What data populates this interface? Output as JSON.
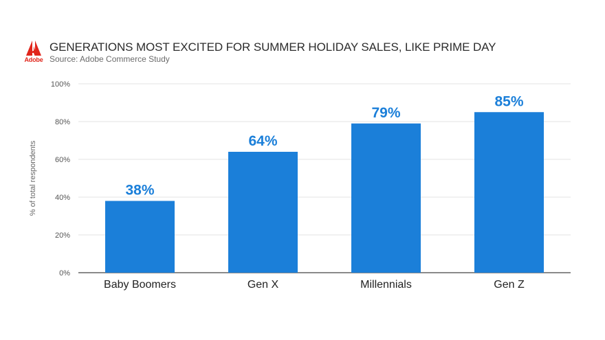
{
  "brand": {
    "name": "Adobe",
    "color": "#e1251b",
    "icon": "adobe-logo-icon"
  },
  "header": {
    "title": "GENERATIONS MOST EXCITED FOR SUMMER HOLIDAY SALES, LIKE PRIME DAY",
    "subtitle": "Source: Adobe Commerce Study"
  },
  "chart_data": {
    "type": "bar",
    "categories": [
      "Baby Boomers",
      "Gen X",
      "Millennials",
      "Gen Z"
    ],
    "values": [
      38,
      64,
      79,
      85
    ],
    "value_labels": [
      "38%",
      "64%",
      "79%",
      "85%"
    ],
    "ylabel": "% of total respondents",
    "ylim": [
      0,
      100
    ],
    "yticks": [
      0,
      20,
      40,
      60,
      80,
      100
    ],
    "ytick_labels": [
      "0%",
      "20%",
      "40%",
      "60%",
      "80%",
      "100%"
    ],
    "grid": true,
    "bar_color": "#1b7fd9",
    "label_color": "#1b7fd9"
  }
}
